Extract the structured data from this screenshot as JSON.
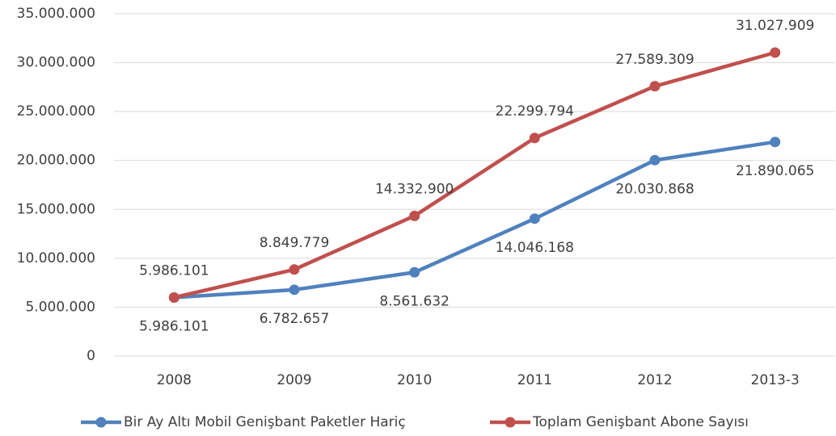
{
  "chart_data": {
    "type": "line",
    "categories": [
      "2008",
      "2009",
      "2010",
      "2011",
      "2012",
      "2013-3"
    ],
    "series": [
      {
        "name": "Bir Ay Altı Mobil Genişbant Paketler Hariç",
        "color": "#4f81bd",
        "values": [
          5986101,
          6782657,
          8561632,
          14046168,
          20030868,
          21890065
        ],
        "value_labels": [
          "5.986.101",
          "6.782.657",
          "8.561.632",
          "14.046.168",
          "20.030.868",
          "21.890.065"
        ]
      },
      {
        "name": "Toplam Genişbant Abone Sayısı",
        "color": "#c0504d",
        "values": [
          5986101,
          8849779,
          14332900,
          22299794,
          27589309,
          31027909
        ],
        "value_labels": [
          "5.986.101",
          "8.849.779",
          "14.332.900",
          "22.299.794",
          "27.589.309",
          "31.027.909"
        ]
      }
    ],
    "ylim": [
      0,
      35000000
    ],
    "yticks": [
      0,
      {
        "value": 5000000,
        "label": "5.000.000"
      },
      {
        "value": 10000000,
        "label": "10.000.000"
      },
      {
        "value": 15000000,
        "label": "15.000.000"
      },
      {
        "value": 20000000,
        "label": "20.000.000"
      },
      {
        "value": 25000000,
        "label": "25.000.000"
      },
      {
        "value": 30000000,
        "label": "30.000.000"
      },
      {
        "value": 35000000,
        "label": "35.000.000"
      }
    ],
    "grid": true,
    "legend": "bottom"
  }
}
